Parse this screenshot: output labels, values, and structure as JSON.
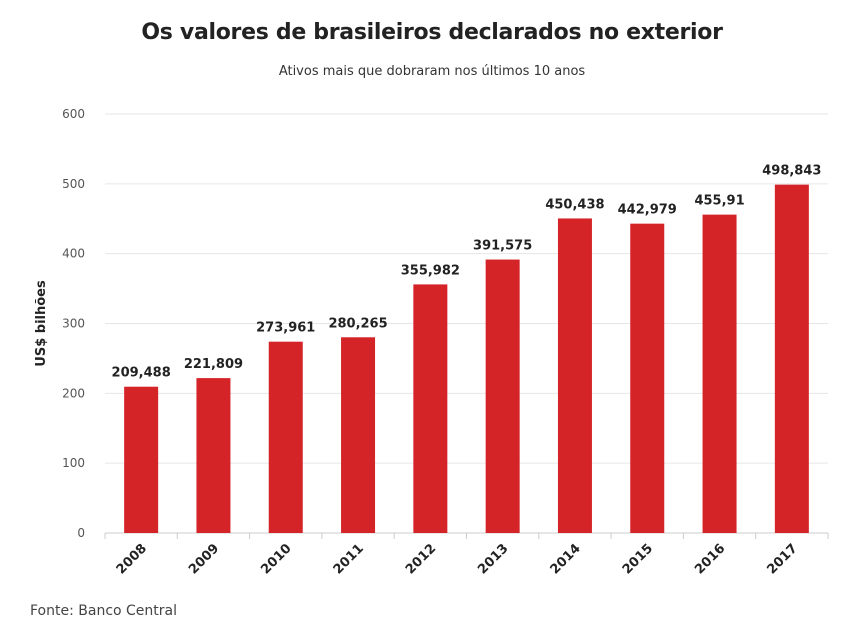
{
  "title": "Os valores de brasileiros declarados no exterior",
  "subtitle": "Ativos mais que dobraram nos últimos 10 anos",
  "source": "Fonte: Banco Central",
  "colors": {
    "bar": "#d42428",
    "grid": "#e6e6e6",
    "axis": "#cccccc"
  },
  "chart_data": {
    "type": "bar",
    "title": "Os valores de brasileiros declarados no exterior",
    "subtitle": "Ativos mais que dobraram nos últimos 10 anos",
    "xlabel": "",
    "ylabel": "US$ bilhões",
    "ylim": [
      0,
      600
    ],
    "yticks": [
      0,
      100,
      200,
      300,
      400,
      500,
      600
    ],
    "grid": true,
    "categories": [
      "2008",
      "2009",
      "2010",
      "2011",
      "2012",
      "2013",
      "2014",
      "2015",
      "2016",
      "2017"
    ],
    "values": [
      209.488,
      221.809,
      273.961,
      280.265,
      355.982,
      391.575,
      450.438,
      442.979,
      455.91,
      498.843
    ],
    "data_labels": [
      "209,488",
      "221,809",
      "273,961",
      "280,265",
      "355,982",
      "391,575",
      "450,438",
      "442,979",
      "455,91",
      "498,843"
    ]
  }
}
